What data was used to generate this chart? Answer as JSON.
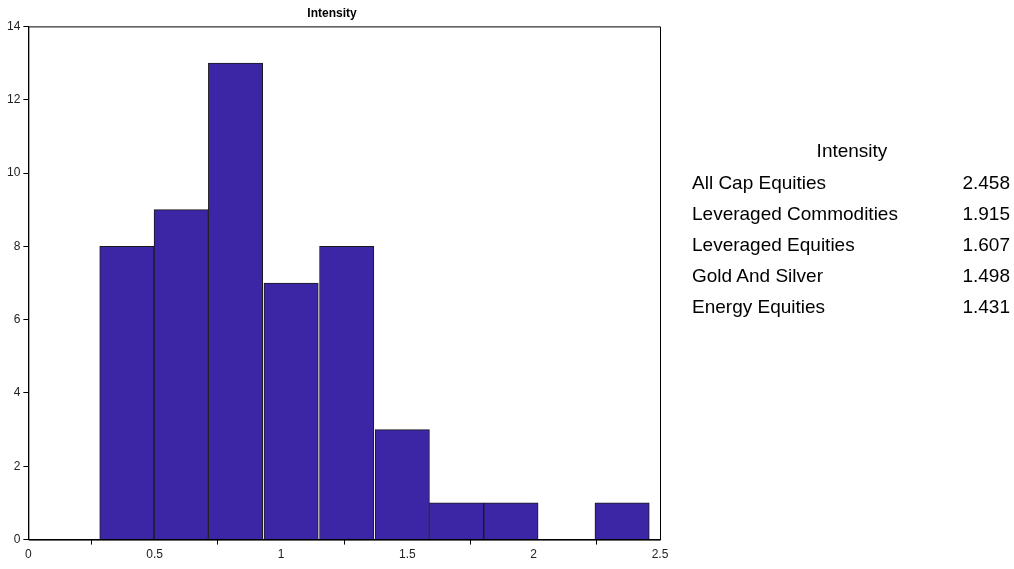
{
  "chart_data": [
    {
      "type": "histogram",
      "title": "Intensity",
      "bins": [
        0.28,
        0.5,
        0.71,
        0.93,
        1.15,
        1.37,
        1.59,
        1.8,
        2.02,
        2.24,
        2.46
      ],
      "values": [
        8,
        9,
        13,
        7,
        8,
        3,
        1,
        1,
        0,
        1
      ],
      "color": "#3c26a6",
      "xlim": [
        0,
        2.5
      ],
      "xticks": [
        0,
        0.5,
        1,
        1.5,
        2,
        2.5
      ],
      "ylim": [
        0,
        14
      ],
      "yticks": [
        0,
        2,
        4,
        6,
        8,
        10,
        12,
        14
      ],
      "grid": false,
      "legend": false
    },
    {
      "type": "other",
      "title": "Intensity",
      "annotations": [
        "All Cap Equities",
        "2.458",
        "Leveraged Commodities",
        "1.915",
        "Leveraged Equities",
        "1.607",
        "Gold And Silver",
        "1.498",
        "Energy Equities",
        "1.431"
      ]
    }
  ]
}
